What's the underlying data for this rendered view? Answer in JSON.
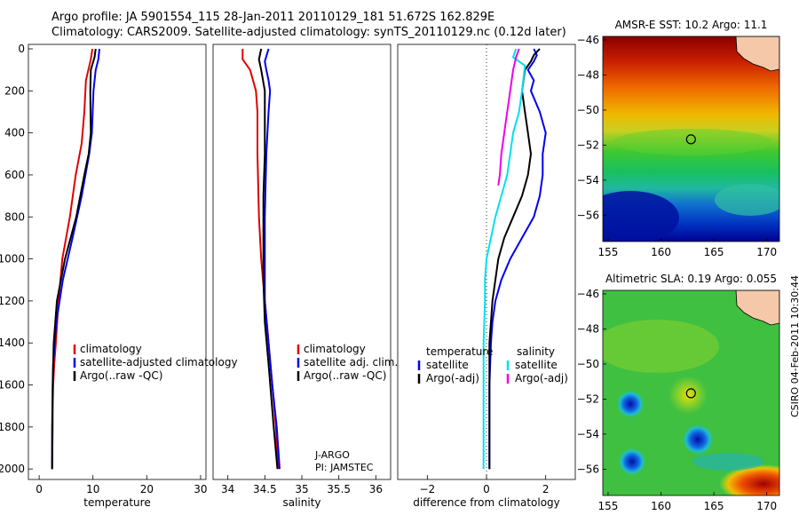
{
  "title_line1": "Argo profile: JA 5901554_115 28-Jan-2011 20110129_181 51.672S 162.829E",
  "title_line2": "Climatology: CARS2009. Satellite-adjusted climatology: synTS_20110129.nc (0.12d later)",
  "institution_line1": "J-ARGO",
  "institution_line2": "PI: JAMSTEC",
  "credit": "CSIRO 04-Feb-2011 10:30:44",
  "colors": {
    "climatology": "#e00000",
    "satellite": "#0000ee",
    "argo": "#000000",
    "satellite_diff": "#00e0f0",
    "argo_adj_diff": "#ee00ee"
  },
  "chart_data": [
    {
      "type": "line",
      "xlabel": "temperature",
      "ylabel": "",
      "xlim": [
        -2,
        31
      ],
      "ylim": [
        2050,
        0
      ],
      "xticks": [
        0,
        10,
        20,
        30
      ],
      "yticks": [
        0,
        200,
        400,
        600,
        800,
        1000,
        1200,
        1400,
        1600,
        1800,
        2000
      ],
      "legend": [
        "climatology",
        "satellite-adjusted climatology",
        "Argo(..raw -QC)"
      ],
      "legend_position": "lower-left",
      "series": [
        {
          "name": "climatology",
          "color": "#e00000",
          "x": [
            9.9,
            9.6,
            8.7,
            8.4,
            7.9,
            6.8,
            5.7,
            4.3,
            3.6,
            3.1,
            2.8,
            2.6,
            2.5,
            2.5,
            2.4
          ],
          "y": [
            0,
            50,
            150,
            300,
            450,
            600,
            800,
            1000,
            1200,
            1400,
            1500,
            1600,
            1700,
            1800,
            2000
          ]
        },
        {
          "name": "satellite-adjusted climatology",
          "color": "#0000ee",
          "x": [
            11.2,
            11.0,
            10.5,
            10.1,
            9.8,
            9.3,
            7.9,
            6.2,
            4.4,
            3.2,
            2.6,
            2.4,
            2.4
          ],
          "y": [
            0,
            50,
            100,
            200,
            400,
            500,
            700,
            900,
            1100,
            1300,
            1500,
            1800,
            2000
          ]
        },
        {
          "name": "Argo(..raw -QC)",
          "color": "#000000",
          "x": [
            10.5,
            10.3,
            9.6,
            9.5,
            9.6,
            9.2,
            8.4,
            6.9,
            4.8,
            3.3,
            2.7,
            2.5,
            2.4
          ],
          "y": [
            0,
            40,
            100,
            200,
            400,
            500,
            600,
            800,
            1000,
            1200,
            1400,
            1600,
            2000
          ]
        }
      ]
    },
    {
      "type": "line",
      "xlabel": "salinity",
      "ylabel": "",
      "xlim": [
        33.8,
        36.2
      ],
      "ylim": [
        2050,
        0
      ],
      "xticks": [
        34,
        34.5,
        35,
        35.5,
        36
      ],
      "xticklabels": [
        "34",
        "34.5",
        "35",
        "35.5",
        "36"
      ],
      "legend": [
        "climatology",
        "satellite adj. clim.",
        "Argo(..raw -QC)"
      ],
      "legend_position": "lower-right",
      "series": [
        {
          "name": "climatology",
          "color": "#e00000",
          "x": [
            34.2,
            34.2,
            34.3,
            34.38,
            34.4,
            34.4,
            34.42,
            34.45,
            34.5,
            34.55,
            34.6,
            34.65,
            34.68
          ],
          "y": [
            0,
            50,
            100,
            200,
            300,
            500,
            800,
            1000,
            1200,
            1400,
            1600,
            1800,
            2000
          ]
        },
        {
          "name": "satellite adj. clim.",
          "color": "#0000ee",
          "x": [
            34.55,
            34.5,
            34.52,
            34.55,
            34.57,
            34.55,
            34.52,
            34.5,
            34.5,
            34.5,
            34.55,
            34.6,
            34.66,
            34.7
          ],
          "y": [
            0,
            60,
            100,
            150,
            200,
            300,
            500,
            800,
            1000,
            1200,
            1400,
            1600,
            1800,
            2000
          ]
        },
        {
          "name": "Argo(..raw -QC)",
          "color": "#000000",
          "x": [
            34.45,
            34.42,
            34.45,
            34.5,
            34.5,
            34.5,
            34.48,
            34.48,
            34.48,
            34.5,
            34.55,
            34.62,
            34.67
          ],
          "y": [
            0,
            50,
            100,
            200,
            300,
            500,
            700,
            900,
            1100,
            1300,
            1500,
            1800,
            2000
          ]
        }
      ]
    },
    {
      "type": "line",
      "xlabel": "difference from climatology",
      "ylabel": "",
      "xlim": [
        -3,
        3
      ],
      "ylim": [
        2050,
        0
      ],
      "xticks": [
        -2,
        0,
        2
      ],
      "xticklabels": [
        "−2",
        "0",
        "2"
      ],
      "legend_groups": [
        {
          "title": "temperature",
          "items": [
            "satellite",
            "Argo(-adj)"
          ]
        },
        {
          "title": "salinity",
          "items": [
            "satellite",
            "Argo(-adj)"
          ]
        }
      ],
      "legend_position": "lower-center",
      "series": [
        {
          "name": "temperature satellite",
          "color": "#0000ee",
          "x": [
            1.6,
            1.7,
            1.6,
            1.4,
            1.6,
            1.5,
            1.8,
            2.0,
            1.9,
            1.9,
            1.8,
            1.6,
            1.2,
            0.8,
            0.5,
            0.3,
            0.2,
            0.15,
            0.1,
            0.1
          ],
          "y": [
            0,
            30,
            60,
            100,
            150,
            200,
            300,
            400,
            500,
            600,
            700,
            800,
            900,
            1000,
            1100,
            1200,
            1300,
            1400,
            1600,
            2000
          ]
        },
        {
          "name": "temperature Argo(-adj)",
          "color": "#000000",
          "x": [
            1.8,
            1.6,
            1.5,
            1.3,
            1.2,
            1.3,
            1.4,
            1.5,
            1.4,
            1.2,
            0.9,
            0.6,
            0.4,
            0.3,
            0.2,
            0.1,
            0.1,
            0.1
          ],
          "y": [
            0,
            30,
            60,
            100,
            200,
            300,
            400,
            500,
            600,
            700,
            800,
            900,
            1000,
            1100,
            1200,
            1400,
            1600,
            2000
          ]
        },
        {
          "name": "salinity satellite",
          "color": "#00e0f0",
          "x": [
            1.0,
            0.9,
            1.3,
            1.2,
            1.1,
            0.9,
            0.8,
            0.7,
            0.5,
            0.3,
            0.15,
            0.0,
            -0.05,
            -0.05,
            -0.1,
            -0.1,
            -0.1
          ],
          "y": [
            0,
            40,
            80,
            200,
            300,
            400,
            500,
            600,
            700,
            800,
            900,
            1000,
            1100,
            1200,
            1400,
            1600,
            2000
          ]
        },
        {
          "name": "salinity Argo(-adj)",
          "color": "#ee00ee",
          "x": [
            1.1,
            1.0,
            0.9,
            0.8,
            0.7,
            0.6,
            0.5,
            0.45,
            0.4
          ],
          "y": [
            0,
            40,
            100,
            200,
            300,
            400,
            500,
            600,
            650
          ]
        }
      ]
    },
    {
      "type": "heatmap",
      "title": "AMSR-E SST: 10.2  Argo: 11.1",
      "xlim": [
        154.5,
        171.2
      ],
      "ylim": [
        -57.5,
        -45.8
      ],
      "xticks": [
        155,
        160,
        165,
        170
      ],
      "yticks": [
        -46,
        -48,
        -50,
        -52,
        -54,
        -56
      ],
      "profile_position": {
        "lon": 162.83,
        "lat": -51.67
      }
    },
    {
      "type": "heatmap",
      "title": "Altimetric SLA: 0.19  Argo: 0.055",
      "xlim": [
        154.5,
        171.2
      ],
      "ylim": [
        -57.5,
        -45.8
      ],
      "xticks": [
        155,
        160,
        165,
        170
      ],
      "yticks": [
        -46,
        -48,
        -50,
        -52,
        -54,
        -56
      ],
      "profile_position": {
        "lon": 162.83,
        "lat": -51.67
      }
    }
  ]
}
